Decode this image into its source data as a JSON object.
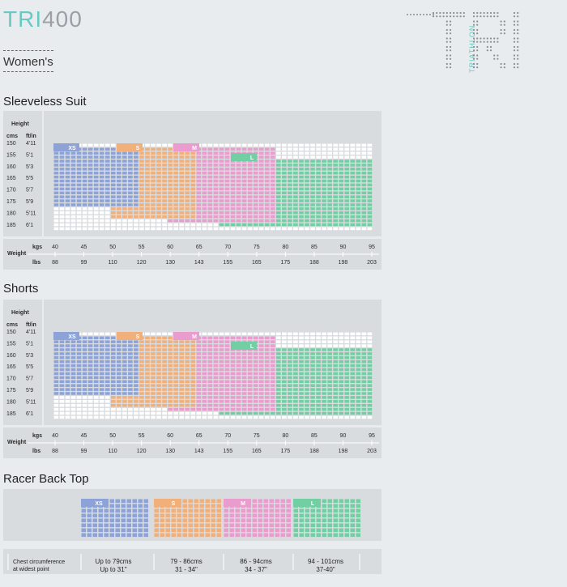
{
  "brand": {
    "tri": "TRI",
    "num": "400"
  },
  "logo": {
    "letters": "TRI",
    "word": "TRIATHLON"
  },
  "category": "Women's",
  "colors": {
    "xs": "#8da3d8",
    "s": "#f1b07a",
    "m": "#e99ccd",
    "l": "#72cfa3",
    "empty": "#ffffff",
    "panel": "#d9dcdf",
    "accent": "#69c8c1"
  },
  "axis_labels": {
    "height": "Height",
    "cms": "cms",
    "ftin": "ft/in",
    "weight": "Weight",
    "kgs": "kgs",
    "lbs": "lbs"
  },
  "heights_cms": [
    "150",
    "155",
    "160",
    "165",
    "170",
    "175",
    "180",
    "185"
  ],
  "heights_ft": [
    "4'11",
    "5'1",
    "5'3",
    "5'5",
    "5'7",
    "5'9",
    "5'11",
    "6'1"
  ],
  "weights_kg": [
    "40",
    "45",
    "50",
    "55",
    "60",
    "65",
    "70",
    "75",
    "80",
    "85",
    "90",
    "95"
  ],
  "weights_lbs": [
    "88",
    "99",
    "110",
    "120",
    "130",
    "143",
    "155",
    "165",
    "175",
    "188",
    "198",
    "203"
  ],
  "chart_data": [
    {
      "type": "heatmap",
      "title": "Sleeveless Suit",
      "xlabel": "Weight",
      "ylabel": "Height",
      "size_labels": [
        "XS",
        "S",
        "M",
        "L"
      ],
      "size_regions": [
        {
          "size": "XS",
          "weight_kg": [
            40,
            55
          ],
          "height_cm": [
            150,
            175
          ]
        },
        {
          "size": "S",
          "weight_kg": [
            50,
            65
          ],
          "height_cm": [
            150,
            180
          ]
        },
        {
          "size": "M",
          "weight_kg": [
            60,
            80
          ],
          "height_cm": [
            150,
            182
          ]
        },
        {
          "size": "L",
          "weight_kg": [
            70,
            97
          ],
          "height_cm": [
            155,
            185
          ]
        }
      ]
    },
    {
      "type": "heatmap",
      "title": "Shorts",
      "xlabel": "Weight",
      "ylabel": "Height",
      "size_labels": [
        "XS",
        "S",
        "M",
        "L"
      ],
      "size_regions": [
        {
          "size": "XS",
          "weight_kg": [
            40,
            55
          ],
          "height_cm": [
            150,
            175
          ]
        },
        {
          "size": "S",
          "weight_kg": [
            50,
            65
          ],
          "height_cm": [
            150,
            180
          ]
        },
        {
          "size": "M",
          "weight_kg": [
            60,
            80
          ],
          "height_cm": [
            150,
            182
          ]
        },
        {
          "size": "L",
          "weight_kg": [
            70,
            97
          ],
          "height_cm": [
            155,
            185
          ]
        }
      ]
    },
    {
      "type": "table",
      "title": "Racer Back Top",
      "row_label": "Chest circumference at widest point",
      "sizes": [
        {
          "size": "XS",
          "cms": "Up to 79cms",
          "inches": "Up to 31\""
        },
        {
          "size": "S",
          "cms": "79 - 86cms",
          "inches": "31 - 34\""
        },
        {
          "size": "M",
          "cms": "86 - 94cms",
          "inches": "34 - 37\""
        },
        {
          "size": "L",
          "cms": "94 - 101cms",
          "inches": "37-40\""
        }
      ]
    }
  ]
}
